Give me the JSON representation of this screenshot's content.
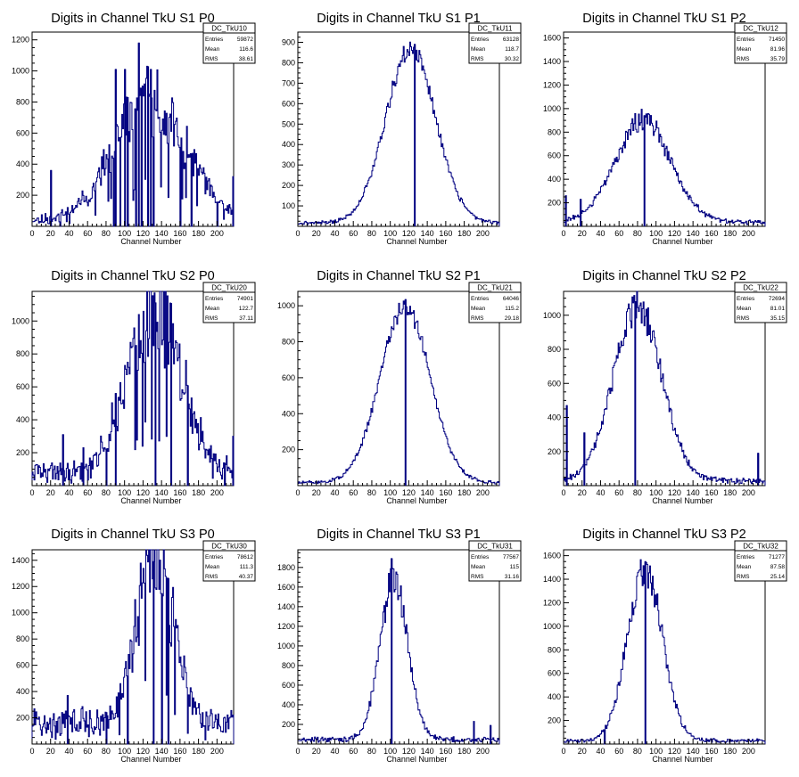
{
  "colors": {
    "histogram": "#000080",
    "frame": "#000000",
    "background": "#ffffff"
  },
  "chart_data": [
    {
      "type": "bar",
      "title": "Digits in Channel TkU S1 P0",
      "xlabel": "Channel Number",
      "xlim": [
        0,
        218
      ],
      "ylim": [
        0,
        1250
      ],
      "xticks": [
        0,
        20,
        40,
        60,
        80,
        100,
        120,
        140,
        160,
        180,
        200
      ],
      "yticks": [
        200,
        400,
        600,
        800,
        1000,
        1200
      ],
      "stats": {
        "name": "DC_TkU10",
        "entries_label": "Entries",
        "entries": "59872",
        "mean_label": "Mean",
        "mean": "116.6",
        "rms_label": "RMS",
        "rms": "38.61"
      },
      "profile": {
        "mean": 127,
        "sigma": 38,
        "peak": 760,
        "baseline": 40,
        "noise": 0.3,
        "seed": 11,
        "smooth": 0.1
      },
      "spikes": [
        [
          20,
          360,
          "up"
        ],
        [
          30,
          0,
          "down"
        ],
        [
          88,
          0,
          "down"
        ],
        [
          90,
          1010,
          "up"
        ],
        [
          95,
          0,
          "down"
        ],
        [
          100,
          1010,
          "up"
        ],
        [
          103,
          0,
          "down"
        ],
        [
          112,
          0,
          "down"
        ],
        [
          115,
          1180,
          "up"
        ],
        [
          118,
          0,
          "down"
        ],
        [
          125,
          0,
          "down"
        ],
        [
          128,
          1010,
          "up"
        ],
        [
          131,
          0,
          "down"
        ],
        [
          160,
          0,
          "down"
        ],
        [
          172,
          0,
          "down"
        ],
        [
          200,
          0,
          "down"
        ],
        [
          217,
          320,
          "up"
        ]
      ]
    },
    {
      "type": "bar",
      "title": "Digits in Channel TkU S1 P1",
      "xlabel": "Channel Number",
      "xlim": [
        0,
        218
      ],
      "ylim": [
        0,
        950
      ],
      "xticks": [
        0,
        20,
        40,
        60,
        80,
        100,
        120,
        140,
        160,
        180,
        200
      ],
      "yticks": [
        100,
        200,
        300,
        400,
        500,
        600,
        700,
        800,
        900
      ],
      "stats": {
        "name": "DC_TkU11",
        "entries_label": "Entries",
        "entries": "63128",
        "mean_label": "Mean",
        "mean": "118.7",
        "rms_label": "RMS",
        "rms": "30.32"
      },
      "profile": {
        "mean": 122,
        "sigma": 27,
        "peak": 850,
        "baseline": 15,
        "noise": 0.05,
        "seed": 21,
        "smooth": 0.0
      },
      "spikes": [
        [
          126,
          890,
          "up"
        ]
      ]
    },
    {
      "type": "bar",
      "title": "Digits in Channel TkU S1 P2",
      "xlabel": "Channel Number",
      "xlim": [
        0,
        218
      ],
      "ylim": [
        0,
        1650
      ],
      "xticks": [
        0,
        20,
        40,
        60,
        80,
        100,
        120,
        140,
        160,
        180,
        200
      ],
      "yticks": [
        200,
        400,
        600,
        800,
        1000,
        1200,
        1400,
        1600
      ],
      "stats": {
        "name": "DC_TkU12",
        "entries_label": "Entries",
        "entries": "71450",
        "mean_label": "Mean",
        "mean": "81.96",
        "rms_label": "RMS",
        "rms": "35.79"
      },
      "profile": {
        "mean": 86,
        "sigma": 30,
        "peak": 870,
        "baseline": 30,
        "noise": 0.1,
        "seed": 31,
        "smooth": 0.0
      },
      "spikes": [
        [
          2,
          260,
          "up"
        ],
        [
          18,
          230,
          "up"
        ],
        [
          87,
          940,
          "up"
        ]
      ]
    },
    {
      "type": "bar",
      "title": "Digits in Channel TkU S2 P0",
      "xlabel": "Channel Number",
      "xlim": [
        0,
        218
      ],
      "ylim": [
        0,
        1180
      ],
      "xticks": [
        0,
        20,
        40,
        60,
        80,
        100,
        120,
        140,
        160,
        180,
        200
      ],
      "yticks": [
        200,
        400,
        600,
        800,
        1000
      ],
      "stats": {
        "name": "DC_TkU20",
        "entries_label": "Entries",
        "entries": "74901",
        "mean_label": "Mean",
        "mean": "122.7",
        "rms_label": "RMS",
        "rms": "37.11"
      },
      "profile": {
        "mean": 132,
        "sigma": 28,
        "peak": 1000,
        "baseline": 80,
        "noise": 0.28,
        "seed": 41,
        "smooth": 0.1
      },
      "spikes": [
        [
          33,
          310,
          "up"
        ],
        [
          55,
          230,
          "up"
        ],
        [
          80,
          0,
          "down"
        ],
        [
          90,
          560,
          "up"
        ],
        [
          133,
          1110,
          "up"
        ],
        [
          150,
          0,
          "down"
        ],
        [
          168,
          0,
          "down"
        ],
        [
          208,
          0,
          "down"
        ],
        [
          217,
          300,
          "up"
        ]
      ]
    },
    {
      "type": "bar",
      "title": "Digits in Channel TkU S2 P1",
      "xlabel": "Channel Number",
      "xlim": [
        0,
        218
      ],
      "ylim": [
        0,
        1080
      ],
      "xticks": [
        0,
        20,
        40,
        60,
        80,
        100,
        120,
        140,
        160,
        180,
        200
      ],
      "yticks": [
        200,
        400,
        600,
        800,
        1000
      ],
      "stats": {
        "name": "DC_TkU21",
        "entries_label": "Entries",
        "entries": "64046",
        "mean_label": "Mean",
        "mean": "115.2",
        "rms_label": "RMS",
        "rms": "29.18"
      },
      "profile": {
        "mean": 116,
        "sigma": 27,
        "peak": 980,
        "baseline": 15,
        "noise": 0.05,
        "seed": 51,
        "smooth": 0.0
      },
      "spikes": [
        [
          116,
          1035,
          "up"
        ]
      ]
    },
    {
      "type": "bar",
      "title": "Digits in Channel TkU S2 P2",
      "xlabel": "Channel Number",
      "xlim": [
        0,
        218
      ],
      "ylim": [
        0,
        1140
      ],
      "xticks": [
        0,
        20,
        40,
        60,
        80,
        100,
        120,
        140,
        160,
        180,
        200
      ],
      "yticks": [
        200,
        400,
        600,
        800,
        1000
      ],
      "stats": {
        "name": "DC_TkU22",
        "entries_label": "Entries",
        "entries": "72694",
        "mean_label": "Mean",
        "mean": "81.01",
        "rms_label": "RMS",
        "rms": "35.15"
      },
      "profile": {
        "mean": 80,
        "sigma": 26,
        "peak": 1020,
        "baseline": 25,
        "noise": 0.1,
        "seed": 61,
        "smooth": 0.0
      },
      "spikes": [
        [
          3,
          470,
          "up"
        ],
        [
          22,
          310,
          "up"
        ],
        [
          77,
          1080,
          "up"
        ],
        [
          210,
          190,
          "up"
        ]
      ]
    },
    {
      "type": "bar",
      "title": "Digits in Channel TkU S3 P0",
      "xlabel": "Channel Number",
      "xlim": [
        0,
        218
      ],
      "ylim": [
        0,
        1480
      ],
      "xticks": [
        0,
        20,
        40,
        60,
        80,
        100,
        120,
        140,
        160,
        180,
        200
      ],
      "yticks": [
        200,
        400,
        600,
        800,
        1000,
        1200,
        1400
      ],
      "stats": {
        "name": "DC_TkU30",
        "entries_label": "Entries",
        "entries": "78612",
        "mean_label": "Mean",
        "mean": "111.3",
        "rms_label": "RMS",
        "rms": "40.37"
      },
      "profile": {
        "mean": 133,
        "sigma": 19,
        "peak": 1320,
        "baseline": 150,
        "noise": 0.25,
        "seed": 71,
        "smooth": 0.05
      },
      "spikes": [
        [
          38,
          370,
          "up"
        ],
        [
          80,
          0,
          "down"
        ],
        [
          103,
          0,
          "down"
        ],
        [
          131,
          1390,
          "up"
        ],
        [
          140,
          0,
          "down"
        ],
        [
          147,
          0,
          "down"
        ]
      ]
    },
    {
      "type": "bar",
      "title": "Digits in Channel TkU S3 P1",
      "xlabel": "Channel Number",
      "xlim": [
        0,
        218
      ],
      "ylim": [
        0,
        1980
      ],
      "xticks": [
        0,
        20,
        40,
        60,
        80,
        100,
        120,
        140,
        160,
        180,
        200
      ],
      "yticks": [
        200,
        400,
        600,
        800,
        1000,
        1200,
        1400,
        1600,
        1800
      ],
      "stats": {
        "name": "DC_TkU31",
        "entries_label": "Entries",
        "entries": "77567",
        "mean_label": "Mean",
        "mean": "115",
        "rms_label": "RMS",
        "rms": "31.16"
      },
      "profile": {
        "mean": 104,
        "sigma": 15,
        "peak": 1650,
        "baseline": 40,
        "noise": 0.1,
        "seed": 81,
        "smooth": 0.0
      },
      "spikes": [
        [
          101,
          1890,
          "up"
        ],
        [
          190,
          230,
          "up"
        ],
        [
          208,
          190,
          "up"
        ]
      ]
    },
    {
      "type": "bar",
      "title": "Digits in Channel TkU S3 P2",
      "xlabel": "Channel Number",
      "xlim": [
        0,
        218
      ],
      "ylim": [
        0,
        1650
      ],
      "xticks": [
        0,
        20,
        40,
        60,
        80,
        100,
        120,
        140,
        160,
        180,
        200
      ],
      "yticks": [
        200,
        400,
        600,
        800,
        1000,
        1200,
        1400,
        1600
      ],
      "stats": {
        "name": "DC_TkU32",
        "entries_label": "Entries",
        "entries": "71277",
        "mean_label": "Mean",
        "mean": "87.58",
        "rms_label": "RMS",
        "rms": "25.14"
      },
      "profile": {
        "mean": 88,
        "sigma": 19,
        "peak": 1450,
        "baseline": 25,
        "noise": 0.1,
        "seed": 91,
        "smooth": 0.0
      },
      "spikes": [
        [
          44,
          0,
          "down"
        ],
        [
          88,
          1550,
          "up"
        ]
      ]
    }
  ]
}
